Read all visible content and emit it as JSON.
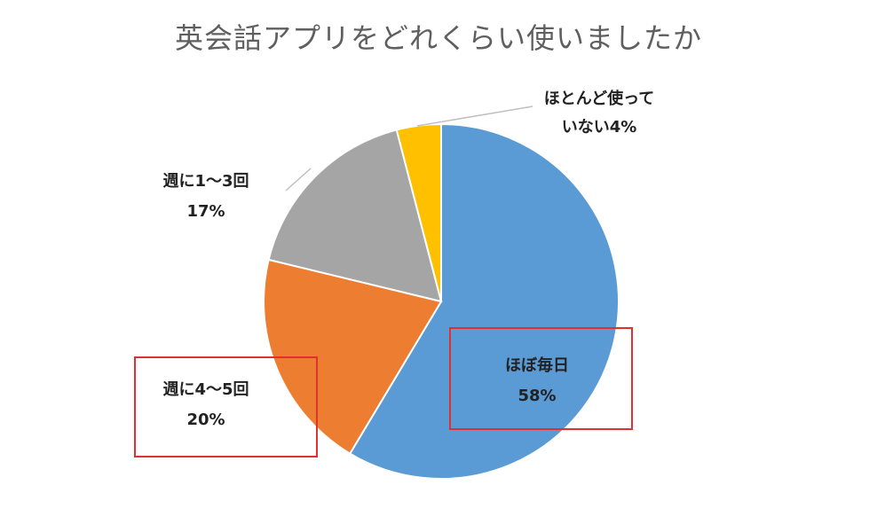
{
  "chart_data": {
    "type": "pie",
    "title": "英会話アプリをどれくらい使いましたか",
    "categories": [
      "ほぼ毎日",
      "週に4〜5回",
      "週に1〜3回",
      "ほとんど使っていない"
    ],
    "values": [
      58,
      20,
      17,
      4
    ],
    "data_labels": [
      {
        "name": "ほぼ毎日",
        "value": "58%"
      },
      {
        "name": "週に4〜5回",
        "value": "20%"
      },
      {
        "name": "週に1〜3回",
        "value": "17%"
      },
      {
        "name_lines": [
          "ほとんど使って",
          "いない4%"
        ]
      }
    ],
    "colors": [
      "#5B9BD5",
      "#ED7D31",
      "#A5A5A5",
      "#FFC000"
    ],
    "highlight_color": "#E03030",
    "legend": "none"
  }
}
